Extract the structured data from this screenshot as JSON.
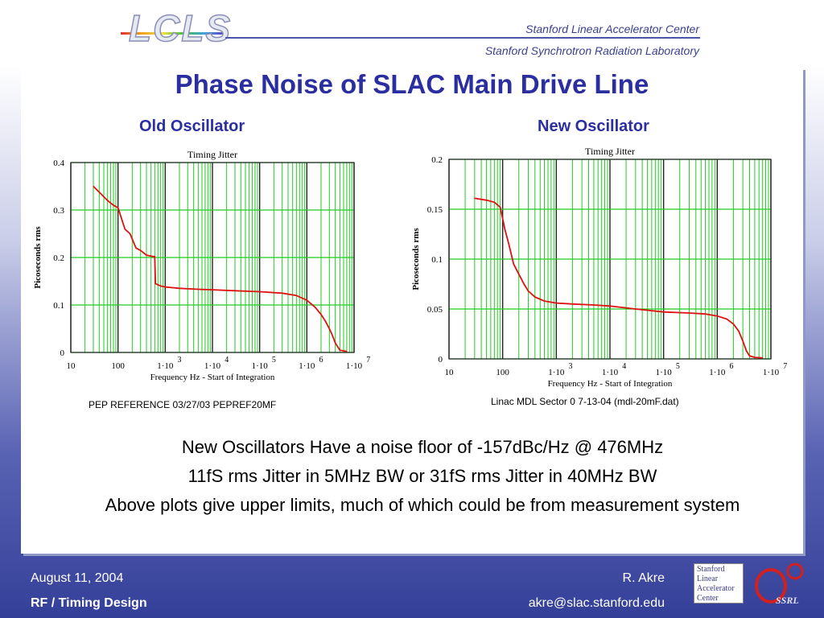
{
  "header": {
    "logo": "LCLS",
    "org1": "Stanford Linear Accelerator Center",
    "org2": "Stanford Synchrotron Radiation Laboratory"
  },
  "title": "Phase Noise of SLAC Main Drive Line",
  "chart_data": [
    {
      "type": "line",
      "subtitle": "Old Oscillator",
      "title": "Timing Jitter",
      "xlabel": "Frequency Hz - Start of Integration",
      "ylabel": "Picoseconds rms",
      "x_scale": "log",
      "xlim": [
        10,
        10000000
      ],
      "ylim": [
        0,
        0.4
      ],
      "x_ticks": [
        "10",
        "100",
        "1·10^3",
        "1·10^4",
        "1·10^5",
        "1·10^6",
        "1·10^7"
      ],
      "y_ticks": [
        "0",
        "0.1",
        "0.2",
        "0.3",
        "0.4"
      ],
      "caption": "PEP REFERENCE 03/27/03 PEPREF20MF",
      "color": "#e01010",
      "x": [
        30,
        60,
        80,
        100,
        140,
        180,
        240,
        300,
        400,
        500,
        550,
        600,
        620,
        800,
        1000,
        2000,
        5000,
        10000,
        30000,
        100000,
        300000,
        600000,
        1000000,
        1500000,
        2000000,
        2500000,
        3000000,
        3500000,
        4000000,
        5000000,
        7000000
      ],
      "y": [
        0.35,
        0.32,
        0.31,
        0.305,
        0.26,
        0.25,
        0.22,
        0.215,
        0.205,
        0.203,
        0.202,
        0.202,
        0.145,
        0.14,
        0.138,
        0.135,
        0.133,
        0.132,
        0.13,
        0.128,
        0.125,
        0.12,
        0.11,
        0.095,
        0.08,
        0.065,
        0.05,
        0.035,
        0.02,
        0.005,
        0.002
      ]
    },
    {
      "type": "line",
      "subtitle": "New Oscillator",
      "title": "Timing Jitter",
      "xlabel": "Frequency Hz - Start of Integration",
      "ylabel": "Picoseconds rms",
      "x_scale": "log",
      "xlim": [
        10,
        10000000
      ],
      "ylim": [
        0,
        0.2
      ],
      "x_ticks": [
        "10",
        "100",
        "1·10^3",
        "1·10^4",
        "1·10^5",
        "1·10^6",
        "1·10^7"
      ],
      "y_ticks": [
        "0",
        "0.05",
        "0.1",
        "0.15",
        "0.2"
      ],
      "caption": "Linac MDL Sector 0 7-13-04 (mdl-20mF.dat)",
      "color": "#e01010",
      "x": [
        30,
        50,
        70,
        90,
        110,
        130,
        160,
        200,
        250,
        300,
        400,
        600,
        1000,
        2000,
        5000,
        10000,
        30000,
        100000,
        300000,
        600000,
        1000000,
        1500000,
        2000000,
        2500000,
        3000000,
        3500000,
        4000000,
        5000000,
        7000000
      ],
      "y": [
        0.161,
        0.159,
        0.157,
        0.152,
        0.13,
        0.115,
        0.095,
        0.085,
        0.075,
        0.068,
        0.062,
        0.058,
        0.056,
        0.055,
        0.054,
        0.053,
        0.05,
        0.047,
        0.046,
        0.045,
        0.043,
        0.04,
        0.035,
        0.028,
        0.018,
        0.008,
        0.003,
        0.0015,
        0.001
      ]
    }
  ],
  "bullets": [
    "New Oscillators Have a noise floor of -157dBc/Hz @ 476MHz",
    "11fS rms Jitter in 5MHz BW or 31fS rms Jitter in 40MHz BW",
    "Above plots give upper limits, much of which could be from measurement system"
  ],
  "footer": {
    "date": "August 11, 2004",
    "section": "RF / Timing Design",
    "author": "R. Akre",
    "email": "akre@slac.stanford.edu"
  },
  "badge": {
    "lines": [
      "Stanford",
      "Linear",
      "Accelerator",
      "Center"
    ],
    "ssrl": "SSRL"
  }
}
